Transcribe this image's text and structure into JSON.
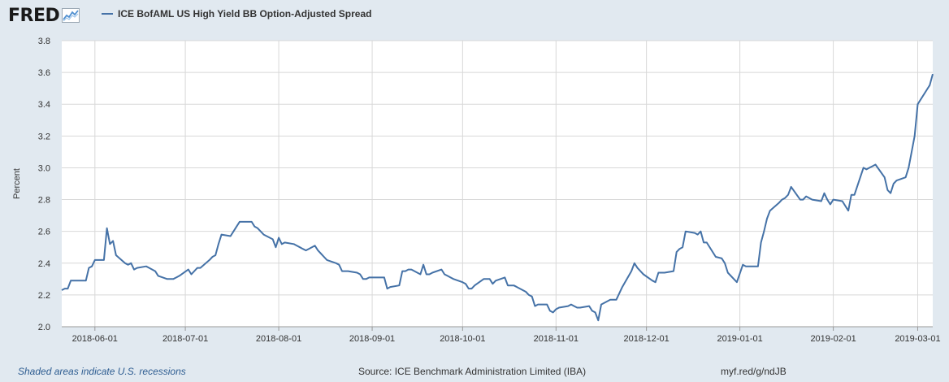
{
  "header": {
    "logo_text": "FRED",
    "legend_label": "ICE BofAML US High Yield BB Option-Adjusted Spread"
  },
  "footer": {
    "recession_note": "Shaded areas indicate U.S. recessions",
    "source": "Source: ICE Benchmark Administration Limited (IBA)",
    "shortlink": "myf.red/g/ndJB"
  },
  "colors": {
    "line": "#4572a7",
    "background": "#e1e9f0",
    "plot_background": "#ffffff",
    "grid": "#d8d8d8"
  },
  "chart_data": {
    "type": "line",
    "title": "",
    "xlabel": "",
    "ylabel": "Percent",
    "ylim": [
      2.0,
      3.8
    ],
    "yticks": [
      2.0,
      2.2,
      2.4,
      2.6,
      2.8,
      3.0,
      3.2,
      3.4,
      3.6,
      3.8
    ],
    "xlim": [
      "2018-05-21",
      "2019-03-06"
    ],
    "xticks": [
      "2018-06-01",
      "2018-07-01",
      "2018-08-01",
      "2018-09-01",
      "2018-10-01",
      "2018-11-01",
      "2018-12-01",
      "2019-01-01",
      "2019-02-01",
      "2019-03-01"
    ],
    "grid": true,
    "legend": "top-left",
    "series": [
      {
        "name": "ICE BofAML US High Yield BB Option-Adjusted Spread",
        "segments": [
          [
            [
              "2018-05-21",
              2.23
            ],
            [
              "2018-05-22",
              2.24
            ],
            [
              "2018-05-23",
              2.24
            ],
            [
              "2018-05-24",
              2.29
            ],
            [
              "2018-05-25",
              2.29
            ],
            [
              "2018-05-29",
              2.29
            ],
            [
              "2018-05-30",
              2.37
            ],
            [
              "2018-05-31",
              2.38
            ],
            [
              "2018-06-01",
              2.42
            ],
            [
              "2018-06-04",
              2.42
            ],
            [
              "2018-06-05",
              2.62
            ],
            [
              "2018-06-06",
              2.52
            ],
            [
              "2018-06-07",
              2.54
            ],
            [
              "2018-06-08",
              2.45
            ],
            [
              "2018-06-11",
              2.4
            ],
            [
              "2018-06-12",
              2.39
            ],
            [
              "2018-06-13",
              2.4
            ],
            [
              "2018-06-14",
              2.36
            ],
            [
              "2018-06-15",
              2.37
            ],
            [
              "2018-06-18",
              2.38
            ],
            [
              "2018-06-19",
              2.37
            ],
            [
              "2018-06-20",
              2.36
            ],
            [
              "2018-06-21",
              2.35
            ],
            [
              "2018-06-22",
              2.32
            ],
            [
              "2018-06-25",
              2.3
            ],
            [
              "2018-06-26",
              2.3
            ],
            [
              "2018-06-27",
              2.3
            ],
            [
              "2018-06-28",
              2.31
            ],
            [
              "2018-06-29",
              2.32
            ],
            [
              "2018-07-02",
              2.36
            ],
            [
              "2018-07-03",
              2.33
            ],
            [
              "2018-07-05",
              2.37
            ],
            [
              "2018-07-06",
              2.37
            ],
            [
              "2018-07-09",
              2.42
            ],
            [
              "2018-07-10",
              2.44
            ],
            [
              "2018-07-11",
              2.45
            ],
            [
              "2018-07-12",
              2.52
            ],
            [
              "2018-07-13",
              2.58
            ],
            [
              "2018-07-16",
              2.57
            ],
            [
              "2018-07-17",
              2.6
            ],
            [
              "2018-07-18",
              2.63
            ],
            [
              "2018-07-19",
              2.66
            ],
            [
              "2018-07-20",
              2.66
            ],
            [
              "2018-07-23",
              2.66
            ],
            [
              "2018-07-24",
              2.63
            ],
            [
              "2018-07-25",
              2.62
            ],
            [
              "2018-07-26",
              2.6
            ],
            [
              "2018-07-27",
              2.58
            ],
            [
              "2018-07-30",
              2.55
            ],
            [
              "2018-07-31",
              2.5
            ],
            [
              "2018-08-01",
              2.56
            ],
            [
              "2018-08-02",
              2.52
            ],
            [
              "2018-08-03",
              2.53
            ],
            [
              "2018-08-06",
              2.52
            ],
            [
              "2018-08-07",
              2.51
            ],
            [
              "2018-08-08",
              2.5
            ],
            [
              "2018-08-09",
              2.49
            ],
            [
              "2018-08-10",
              2.48
            ],
            [
              "2018-08-13",
              2.51
            ],
            [
              "2018-08-14",
              2.48
            ],
            [
              "2018-08-15",
              2.46
            ],
            [
              "2018-08-16",
              2.44
            ],
            [
              "2018-08-17",
              2.42
            ],
            [
              "2018-08-20",
              2.4
            ],
            [
              "2018-08-21",
              2.39
            ],
            [
              "2018-08-22",
              2.35
            ],
            [
              "2018-08-23",
              2.35
            ],
            [
              "2018-08-24",
              2.35
            ],
            [
              "2018-08-27",
              2.34
            ],
            [
              "2018-08-28",
              2.33
            ],
            [
              "2018-08-29",
              2.3
            ],
            [
              "2018-08-30",
              2.3
            ],
            [
              "2018-08-31",
              2.31
            ],
            [
              "2018-09-04",
              2.31
            ],
            [
              "2018-09-05",
              2.31
            ],
            [
              "2018-09-06",
              2.24
            ],
            [
              "2018-09-07",
              2.25
            ],
            [
              "2018-09-10",
              2.26
            ],
            [
              "2018-09-11",
              2.35
            ],
            [
              "2018-09-12",
              2.35
            ],
            [
              "2018-09-13",
              2.36
            ],
            [
              "2018-09-14",
              2.36
            ],
            [
              "2018-09-17",
              2.33
            ],
            [
              "2018-09-18",
              2.39
            ],
            [
              "2018-09-19",
              2.33
            ],
            [
              "2018-09-20",
              2.33
            ],
            [
              "2018-09-21",
              2.34
            ],
            [
              "2018-09-24",
              2.36
            ],
            [
              "2018-09-25",
              2.33
            ],
            [
              "2018-09-26",
              2.32
            ],
            [
              "2018-09-27",
              2.31
            ],
            [
              "2018-09-28",
              2.3
            ],
            [
              "2018-10-01",
              2.28
            ],
            [
              "2018-10-02",
              2.27
            ],
            [
              "2018-10-03",
              2.24
            ],
            [
              "2018-10-04",
              2.24
            ],
            [
              "2018-10-05",
              2.26
            ],
            [
              "2018-10-08",
              2.3
            ],
            [
              "2018-10-09",
              2.3
            ],
            [
              "2018-10-10",
              2.3
            ],
            [
              "2018-10-11",
              2.27
            ],
            [
              "2018-10-12",
              2.29
            ],
            [
              "2018-10-15",
              2.31
            ],
            [
              "2018-10-16",
              2.26
            ],
            [
              "2018-10-17",
              2.26
            ],
            [
              "2018-10-18",
              2.26
            ],
            [
              "2018-10-19",
              2.25
            ],
            [
              "2018-10-22",
              2.22
            ],
            [
              "2018-10-23",
              2.2
            ],
            [
              "2018-10-24",
              2.19
            ],
            [
              "2018-10-25",
              2.13
            ],
            [
              "2018-10-26",
              2.14
            ],
            [
              "2018-10-29",
              2.14
            ],
            [
              "2018-10-30",
              2.1
            ],
            [
              "2018-10-31",
              2.09
            ],
            [
              "2018-11-01",
              2.11
            ],
            [
              "2018-11-02",
              2.12
            ],
            [
              "2018-11-05",
              2.13
            ],
            [
              "2018-11-06",
              2.14
            ],
            [
              "2018-11-07",
              2.13
            ],
            [
              "2018-11-08",
              2.12
            ],
            [
              "2018-11-09",
              2.12
            ],
            [
              "2018-11-12",
              2.13
            ],
            [
              "2018-11-13",
              2.1
            ],
            [
              "2018-11-14",
              2.09
            ],
            [
              "2018-11-15",
              2.04
            ],
            [
              "2018-11-16",
              2.14
            ],
            [
              "2018-11-19",
              2.17
            ],
            [
              "2018-11-20",
              2.17
            ],
            [
              "2018-11-21",
              2.17
            ],
            [
              "2018-11-23",
              2.25
            ],
            [
              "2018-11-26",
              2.35
            ],
            [
              "2018-11-27",
              2.4
            ],
            [
              "2018-11-28",
              2.37
            ],
            [
              "2018-11-29",
              2.35
            ],
            [
              "2018-11-30",
              2.33
            ],
            [
              "2018-12-03",
              2.29
            ],
            [
              "2018-12-04",
              2.28
            ],
            [
              "2018-12-05",
              2.34
            ],
            [
              "2018-12-06",
              2.34
            ],
            [
              "2018-12-07",
              2.34
            ],
            [
              "2018-12-10",
              2.35
            ],
            [
              "2018-12-11",
              2.47
            ],
            [
              "2018-12-12",
              2.49
            ],
            [
              "2018-12-13",
              2.5
            ],
            [
              "2018-12-14",
              2.6
            ],
            [
              "2018-12-17",
              2.59
            ],
            [
              "2018-12-18",
              2.58
            ],
            [
              "2018-12-19",
              2.6
            ],
            [
              "2018-12-20",
              2.53
            ],
            [
              "2018-12-21",
              2.53
            ],
            [
              "2018-12-24",
              2.44
            ],
            [
              "2018-12-26",
              2.43
            ],
            [
              "2018-12-27",
              2.4
            ],
            [
              "2018-12-28",
              2.34
            ],
            [
              "2018-12-31",
              2.28
            ],
            [
              "2019-01-02",
              2.39
            ],
            [
              "2019-01-03",
              2.38
            ],
            [
              "2019-01-04",
              2.38
            ],
            [
              "2019-01-07",
              2.38
            ],
            [
              "2019-01-08",
              2.53
            ],
            [
              "2019-01-09",
              2.6
            ],
            [
              "2019-01-10",
              2.68
            ],
            [
              "2019-01-11",
              2.73
            ],
            [
              "2019-01-14",
              2.78
            ],
            [
              "2019-01-15",
              2.8
            ],
            [
              "2019-01-16",
              2.81
            ],
            [
              "2019-01-17",
              2.83
            ],
            [
              "2019-01-18",
              2.88
            ],
            [
              "2019-01-21",
              2.8
            ],
            [
              "2019-01-22",
              2.8
            ],
            [
              "2019-01-23",
              2.82
            ],
            [
              "2019-01-24",
              2.81
            ],
            [
              "2019-01-25",
              2.8
            ],
            [
              "2019-01-28",
              2.79
            ],
            [
              "2019-01-29",
              2.84
            ],
            [
              "2019-01-30",
              2.8
            ],
            [
              "2019-01-31",
              2.77
            ],
            [
              "2019-02-01",
              2.8
            ],
            [
              "2019-02-04",
              2.79
            ],
            [
              "2019-02-05",
              2.76
            ],
            [
              "2019-02-06",
              2.73
            ],
            [
              "2019-02-07",
              2.83
            ],
            [
              "2019-02-08",
              2.83
            ],
            [
              "2019-02-11",
              3.0
            ],
            [
              "2019-02-12",
              2.99
            ],
            [
              "2019-02-13",
              3.0
            ],
            [
              "2019-02-14",
              3.01
            ],
            [
              "2019-02-15",
              3.02
            ],
            [
              "2019-02-18",
              2.94
            ],
            [
              "2019-02-19",
              2.86
            ],
            [
              "2019-02-20",
              2.84
            ],
            [
              "2019-02-21",
              2.9
            ],
            [
              "2019-02-22",
              2.92
            ],
            [
              "2019-02-25",
              2.94
            ],
            [
              "2019-02-26",
              3.0
            ],
            [
              "2019-02-27",
              3.1
            ],
            [
              "2019-02-28",
              3.2
            ],
            [
              "2019-03-01",
              3.4
            ],
            [
              "2019-03-04",
              3.49
            ],
            [
              "2019-03-05",
              3.52
            ],
            [
              "2019-03-06",
              3.59
            ]
          ]
        ]
      }
    ]
  }
}
